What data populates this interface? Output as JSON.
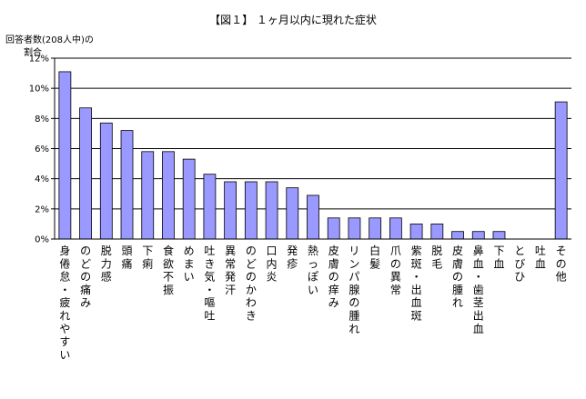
{
  "chart_data": {
    "type": "bar",
    "title": "【図１】 １ヶ月以内に現れた症状",
    "ylabel_line1": "回答者数(208人中)の",
    "ylabel_line2": "割合",
    "ylim": [
      0,
      12
    ],
    "yticks": [
      "0%",
      "2%",
      "4%",
      "6%",
      "8%",
      "10%",
      "12%"
    ],
    "grid": true,
    "color": "#9999ff",
    "categories": [
      "身倦怠・疲れやすい",
      "のどの痛み",
      "脱力感",
      "頭痛",
      "下痢",
      "食欲不振",
      "めまい",
      "吐き気・嘔吐",
      "異常発汗",
      "のどのかわき",
      "口内炎",
      "発疹",
      "熱っぽい",
      "皮膚の痒み",
      "リンパ腺の腫れ",
      "白髪",
      "爪の異常",
      "紫斑・出血斑",
      "脱毛",
      "皮膚の腫れ",
      "鼻血・歯茎出血",
      "下血",
      "とびひ",
      "吐血",
      "その他"
    ],
    "values": [
      11.1,
      8.7,
      7.7,
      7.2,
      5.8,
      5.8,
      5.3,
      4.3,
      3.8,
      3.8,
      3.8,
      3.4,
      2.9,
      1.4,
      1.4,
      1.4,
      1.4,
      1.0,
      1.0,
      0.5,
      0.5,
      0.5,
      0,
      0,
      9.1
    ]
  }
}
